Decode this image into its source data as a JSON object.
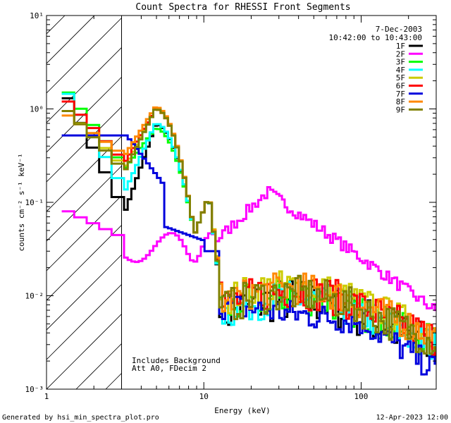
{
  "chart_data": {
    "type": "line",
    "title": "Count Spectra for RHESSI Front Segments",
    "xlabel": "Energy (keV)",
    "ylabel": "counts cm⁻² s⁻¹ keV⁻¹",
    "xscale": "log",
    "yscale": "log",
    "xlim": [
      1,
      300
    ],
    "ylim": [
      0.001,
      10
    ],
    "xticks": [
      {
        "value": 1,
        "label": "1"
      },
      {
        "value": 10,
        "label": "10"
      },
      {
        "value": 100,
        "label": "100"
      }
    ],
    "yticks": [
      {
        "value": 0.001,
        "label": "10⁻³"
      },
      {
        "value": 0.01,
        "label": "10⁻²"
      },
      {
        "value": 0.1,
        "label": "10⁻¹"
      },
      {
        "value": 1,
        "label": "10⁰"
      },
      {
        "value": 10,
        "label": "10¹"
      }
    ],
    "hatched_region": [
      1,
      3
    ],
    "date_label": "7-Dec-2003",
    "time_range": "10:42:00 to 10:43:00",
    "annotations": [
      "Includes Background",
      "Att A0, FDecim 2"
    ],
    "footer_left": "Generated by hsi_min_spectra_plot.pro",
    "footer_right": "12-Apr-2023 12:00",
    "series": [
      {
        "name": "1F",
        "color": "#000000",
        "peak": 0.68,
        "low": 0.07,
        "tail": 0.006,
        "s12": 1.3,
        "noise": 0.55
      },
      {
        "name": "2F",
        "color": "#ff00ff",
        "kind": "magenta"
      },
      {
        "name": "3F",
        "color": "#00ff00",
        "peak": 0.62,
        "low": 0.22,
        "tail": 0.0065,
        "s12": 1.5,
        "noise": 0.45
      },
      {
        "name": "4F",
        "color": "#00ffff",
        "peak": 0.7,
        "low": 0.12,
        "tail": 0.0062,
        "s12": 1.45,
        "noise": 0.45
      },
      {
        "name": "5F",
        "color": "#cccc00",
        "peak": 1.0,
        "low": 0.22,
        "tail": 0.0085,
        "s12": 0.95,
        "noise": 0.4
      },
      {
        "name": "6F",
        "color": "#ff0000",
        "peak": 1.0,
        "low": 0.25,
        "tail": 0.0075,
        "s12": 1.2,
        "noise": 0.45
      },
      {
        "name": "7F",
        "color": "#0000dd",
        "kind": "blue"
      },
      {
        "name": "8F",
        "color": "#ff8800",
        "peak": 1.05,
        "low": 0.3,
        "tail": 0.008,
        "s12": 0.85,
        "noise": 0.4
      },
      {
        "name": "9F",
        "color": "#808000",
        "peak": 1.0,
        "low": 0.2,
        "tail": 0.007,
        "s12": 0.95,
        "noise": 0.45
      }
    ]
  }
}
